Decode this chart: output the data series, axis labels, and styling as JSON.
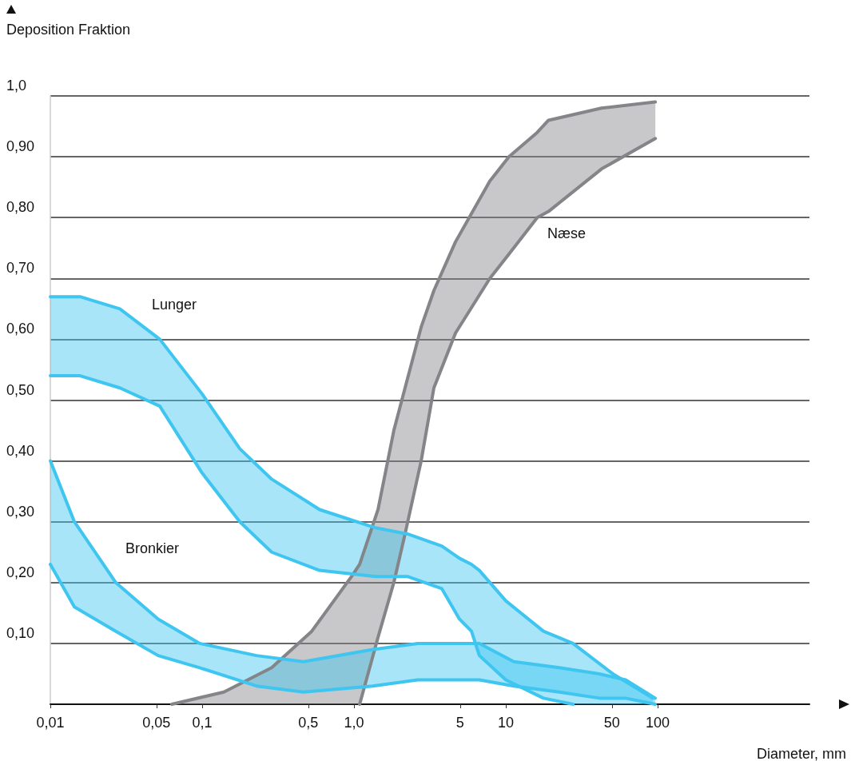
{
  "chart_data": {
    "type": "line",
    "xlabel": "Diameter, mm",
    "ylabel": "Deposition Fraktion",
    "log": "x",
    "xlim": [
      0.01,
      1000
    ],
    "xticks": [
      {
        "value": 0.01,
        "label": "0,01"
      },
      {
        "value": 0.05,
        "label": "0,05"
      },
      {
        "value": 0.1,
        "label": "0,1"
      },
      {
        "value": 0.5,
        "label": "0,5"
      },
      {
        "value": 1,
        "label": "1,0"
      },
      5,
      10,
      50,
      100
    ],
    "ylim": [
      0,
      1
    ],
    "yticks": [
      {
        "value": 0.1,
        "label": "0,10"
      },
      {
        "value": 0.2,
        "label": "0,20"
      },
      {
        "value": 0.3,
        "label": "0,30"
      },
      {
        "value": 0.4,
        "label": "0,40"
      },
      {
        "value": 0.5,
        "label": "0,50"
      },
      {
        "value": 0.6,
        "label": "0,60"
      },
      {
        "value": 0.7,
        "label": "0,70"
      },
      {
        "value": 0.8,
        "label": "0,80"
      },
      {
        "value": 0.9,
        "label": "0,90"
      },
      {
        "value": 1,
        "label": "1,0"
      }
    ],
    "grid": "y",
    "marker": "none",
    "line_style": "solid",
    "series": [
      {
        "type": "area",
        "color": "#848589",
        "x": [
          0.0631,
          0.139,
          0.287,
          0.527,
          0.964,
          1.09,
          1.44,
          1.83,
          2.17,
          2.77,
          3.36,
          4.66,
          7.85,
          10.5,
          16.1,
          19.1,
          42.7,
          96.6
        ],
        "values": [
          0.0,
          0.02,
          0.06,
          0.12,
          0.21,
          0.23,
          0.32,
          0.45,
          0.52,
          0.62,
          0.68,
          0.76,
          0.86,
          0.9,
          0.94,
          0.96,
          0.98,
          0.99
        ]
      },
      {
        "color": "#848589",
        "x": [
          1.09,
          1.44,
          1.83,
          2.17,
          2.77,
          3.36,
          4.66,
          7.85,
          10.5,
          16.1,
          19.1,
          42.7,
          96.6
        ],
        "values": [
          0,
          0.11,
          0.2,
          0.28,
          0.4,
          0.52,
          0.61,
          0.7,
          0.74,
          0.8,
          0.81,
          0.88,
          0.93
        ]
      },
      {
        "type": "area",
        "color": "#3ec5f0",
        "x": [
          0.01,
          0.0157,
          0.0287,
          0.0526,
          0.1,
          0.177,
          0.287,
          0.594,
          1.39,
          2.25,
          3.79,
          4.95,
          5.94,
          6.7,
          10,
          17.7,
          27.7,
          50.7,
          92.9
        ],
        "values": [
          0.67,
          0.67,
          0.65,
          0.6,
          0.51,
          0.42,
          0.37,
          0.32,
          0.29,
          0.28,
          0.26,
          0.24,
          0.23,
          0.22,
          0.17,
          0.12,
          0.1,
          0.05,
          0.01
        ]
      },
      {
        "color": "#3ec5f0",
        "x": [
          0.01,
          0.0157,
          0.0287,
          0.0526,
          0.1,
          0.177,
          0.287,
          0.594,
          1.39,
          2.25,
          3.79,
          4.95,
          5.94,
          6.7,
          10,
          17.7,
          27.7
        ],
        "values": [
          0.54,
          0.54,
          0.52,
          0.49,
          0.38,
          0.3,
          0.25,
          0.22,
          0.21,
          0.21,
          0.19,
          0.14,
          0.12,
          0.08,
          0.04,
          0.01,
          0
        ]
      },
      {
        "type": "area",
        "color": "#3ec5f0",
        "x": [
          0.01,
          0.0144,
          0.027,
          0.0513,
          0.0964,
          0.228,
          0.465,
          1.33,
          2.64,
          4.83,
          6.7,
          11.3,
          22.5,
          41.3,
          61.5,
          96.4
        ],
        "values": [
          0.4,
          0.3,
          0.2,
          0.14,
          0.1,
          0.08,
          0.07,
          0.09,
          0.1,
          0.1,
          0.1,
          0.07,
          0.06,
          0.05,
          0.04,
          0.01
        ]
      },
      {
        "color": "#3ec5f0",
        "x": [
          0.01,
          0.0144,
          0.027,
          0.0513,
          0.0964,
          0.228,
          0.465,
          1.33,
          2.64,
          4.83,
          6.7,
          11.3,
          22.5,
          41.3,
          61.5,
          96.4
        ],
        "values": [
          0.23,
          0.16,
          0.12,
          0.08,
          0.06,
          0.03,
          0.02,
          0.03,
          0.04,
          0.04,
          0.04,
          0.03,
          0.02,
          0.01,
          0.01,
          0.0
        ]
      }
    ],
    "annotations": [
      "Næse",
      "Lunger",
      "Bronkier"
    ]
  }
}
